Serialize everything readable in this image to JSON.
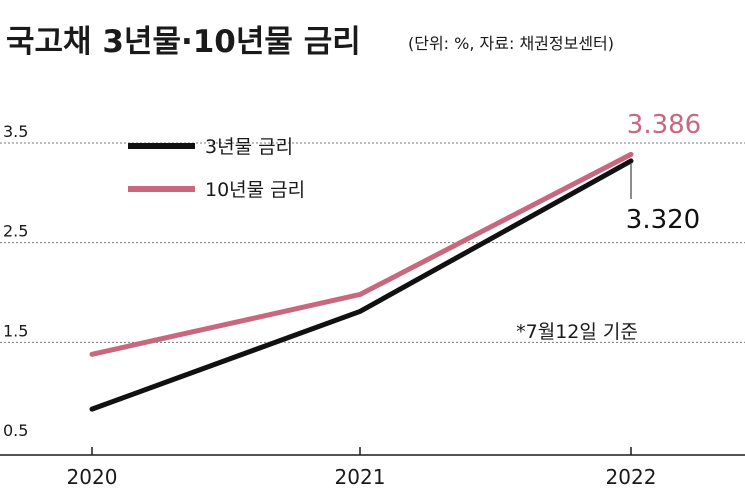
{
  "chart_data": {
    "type": "line",
    "title": "국고채 3년물·10년물 금리",
    "subtitle": "(단위: %, 자료: 채권정보센터)",
    "note": "*7월12일 기준",
    "x": [
      "2020",
      "2021",
      "2022"
    ],
    "yticks": [
      "3.5",
      "2.5",
      "1.5",
      "0.5"
    ],
    "ylim": [
      0.5,
      3.5
    ],
    "grid": true,
    "legend_position": "top-left",
    "series": [
      {
        "name": "3년물 금리",
        "values": [
          0.83,
          1.81,
          3.32
        ],
        "color": "#111111",
        "end_label": "3.320"
      },
      {
        "name": "10년물 금리",
        "values": [
          1.38,
          1.98,
          3.386
        ],
        "color": "#c8677e",
        "end_label": "3.386"
      }
    ]
  }
}
